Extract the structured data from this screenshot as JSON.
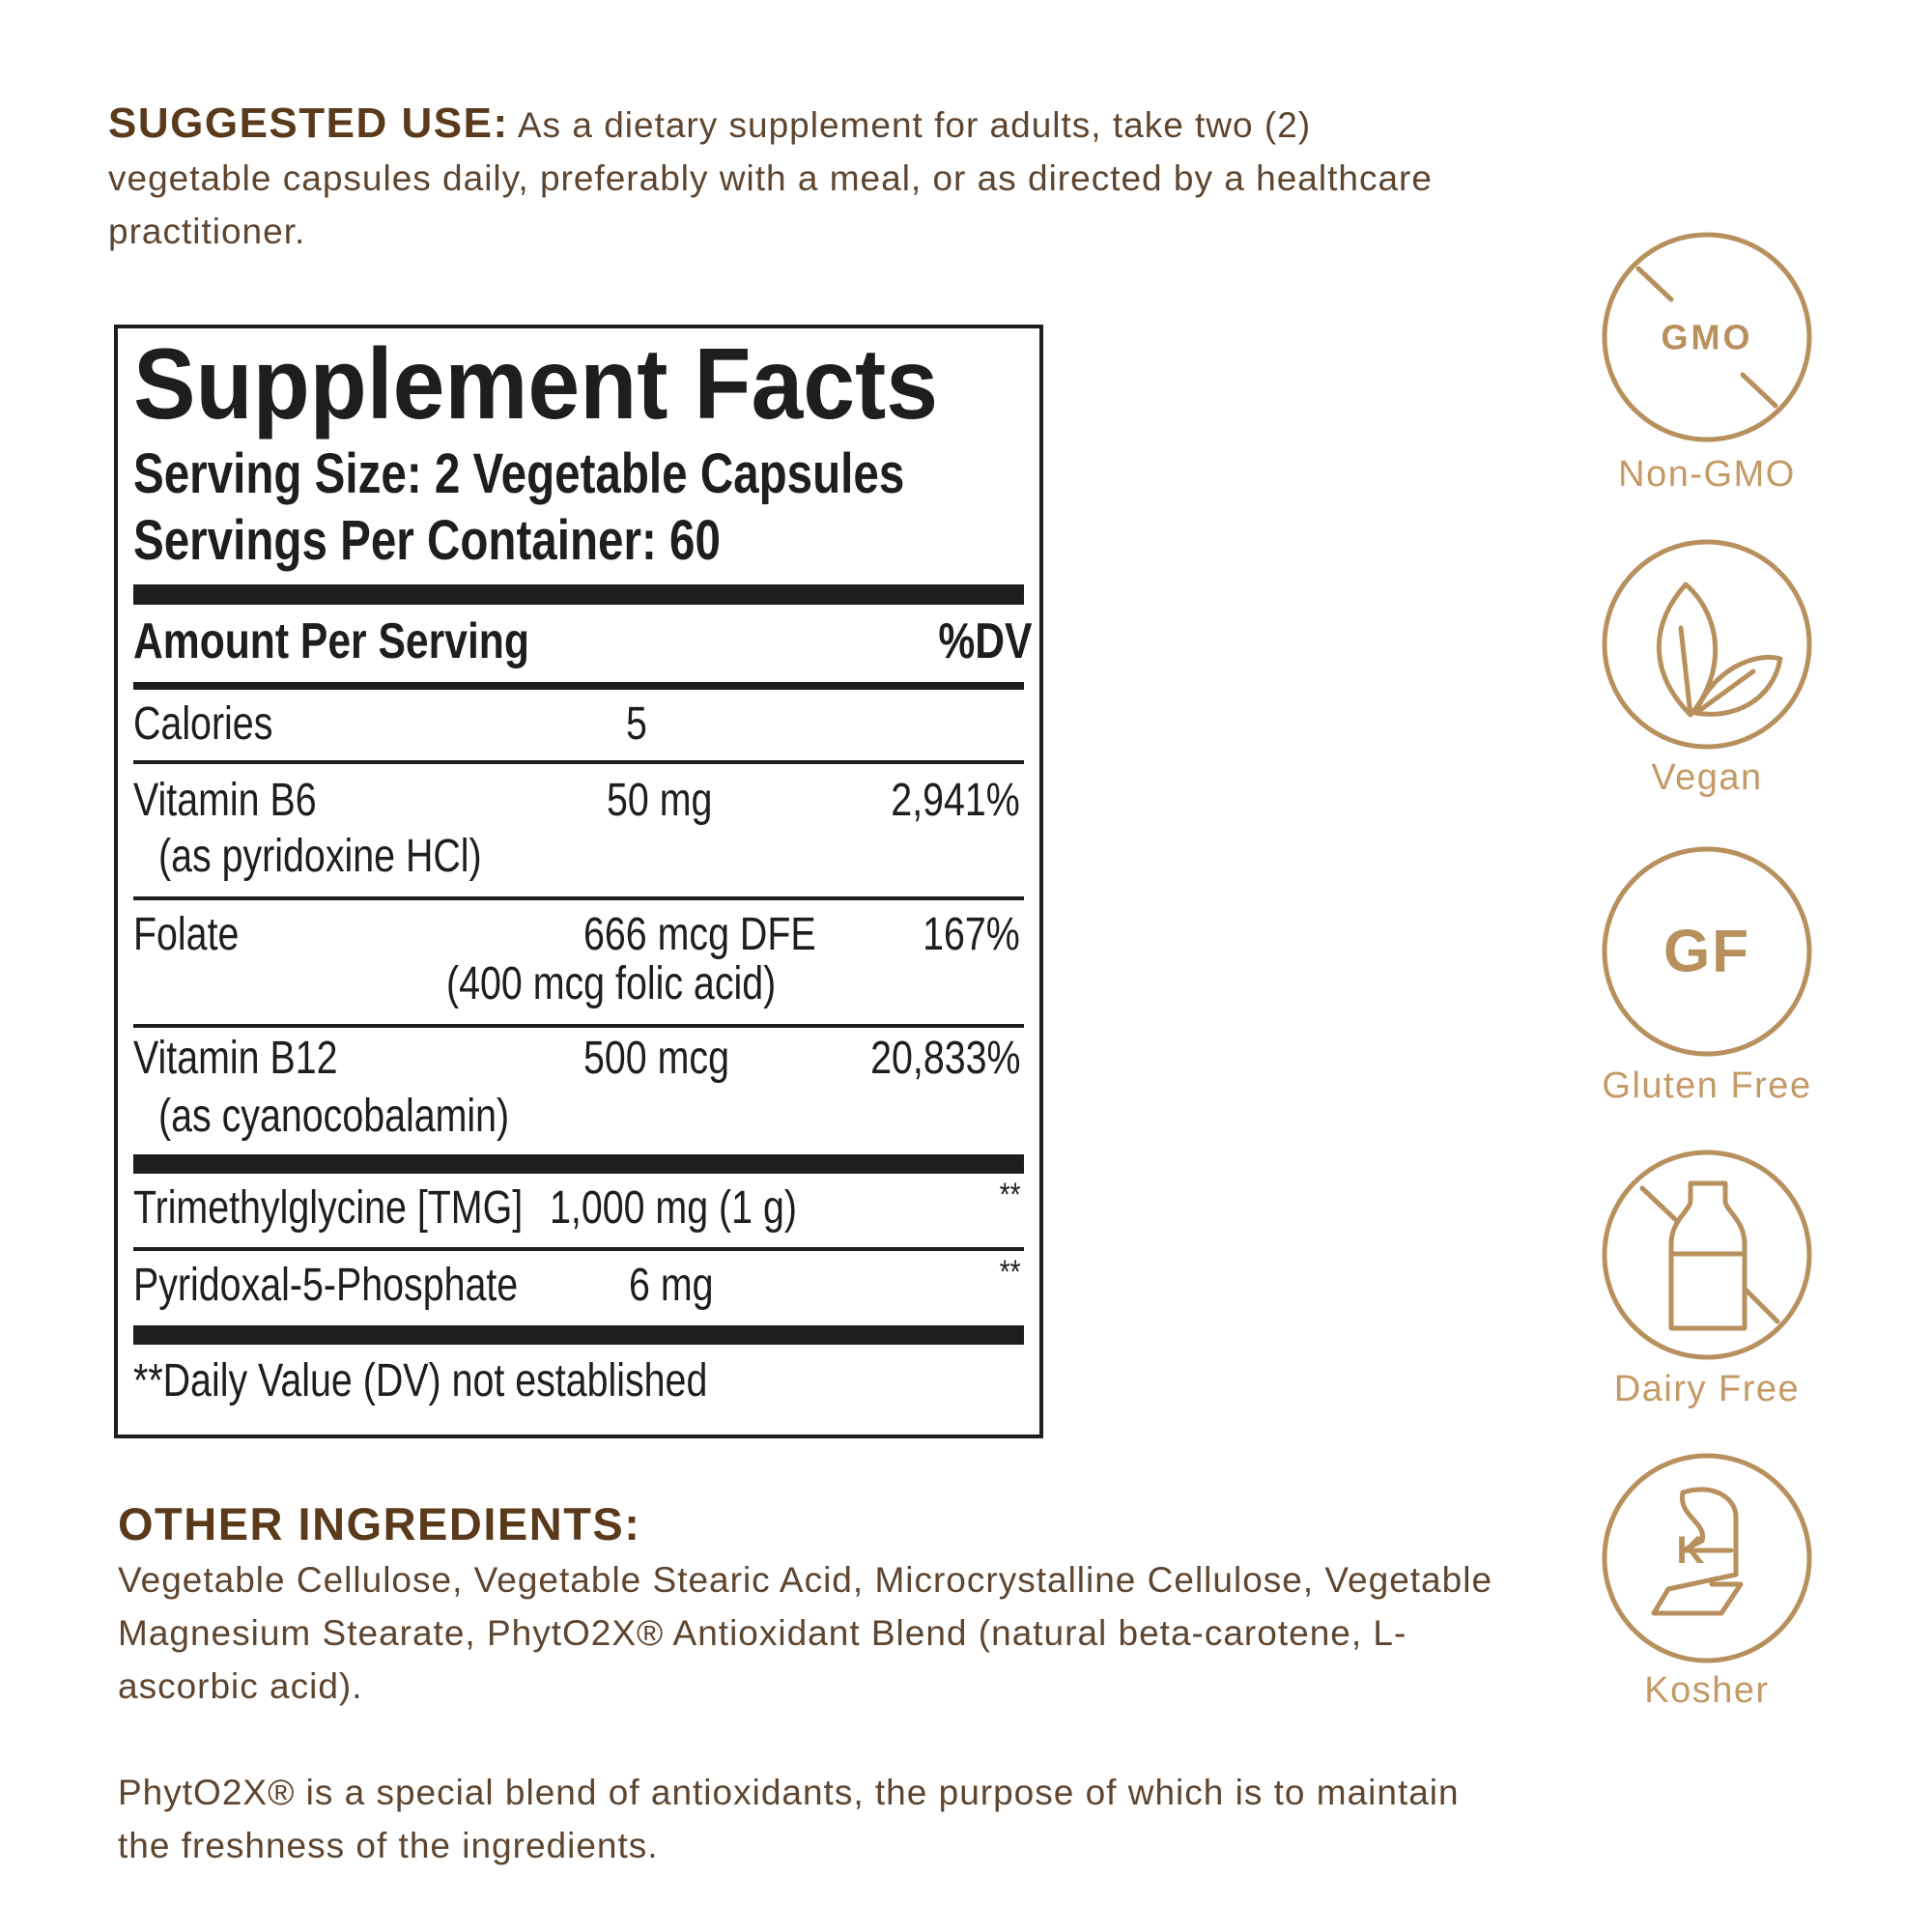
{
  "suggested_use": {
    "label": "SUGGESTED USE:",
    "text": "As a dietary supplement for adults, take two (2) vegetable capsules daily, preferably with a meal, or as directed by a healthcare practitioner."
  },
  "supplement_facts": {
    "title": "Supplement Facts",
    "serving_size": "Serving Size: 2 Vegetable Capsules",
    "servings_per_container": "Servings Per Container: 60",
    "header": {
      "amount": "Amount Per  Serving",
      "dv": "%DV"
    },
    "rows": [
      {
        "name": "Calories",
        "amount": "5"
      },
      {
        "name": "Vitamin B6",
        "sub": "(as pyridoxine HCl)",
        "amount": "50 mg",
        "dv": "2,941%"
      },
      {
        "name": "Folate",
        "amount": "666 mcg DFE",
        "amount_sub": "(400 mcg folic acid)",
        "dv": "167%"
      },
      {
        "name": "Vitamin B12",
        "sub": "(as cyanocobalamin)",
        "amount": "500 mcg",
        "dv": "20,833%"
      },
      {
        "name": "Trimethylglycine [TMG]",
        "amount": "1,000 mg (1 g)",
        "dv": "**"
      },
      {
        "name": "Pyridoxal-5-Phosphate",
        "amount": "6 mg",
        "dv": "**"
      }
    ],
    "footnote": "**Daily Value (DV) not established"
  },
  "other_ingredients": {
    "title": "OTHER INGREDIENTS:",
    "text": "Vegetable Cellulose, Vegetable Stearic Acid, Microcrystalline Cellulose, Vegetable Magnesium Stearate, PhytO2X® Antioxidant Blend (natural beta-carotene, L-ascorbic acid).",
    "note": "PhytO2X® is a special blend of antioxidants, the purpose of which is to maintain the freshness of the ingredients."
  },
  "badges": [
    {
      "icon_text": "GMO",
      "label": "Non-GMO"
    },
    {
      "label": "Vegan"
    },
    {
      "icon_text": "GF",
      "label": "Gluten Free"
    },
    {
      "label": "Dairy Free"
    },
    {
      "label": "Kosher"
    }
  ]
}
